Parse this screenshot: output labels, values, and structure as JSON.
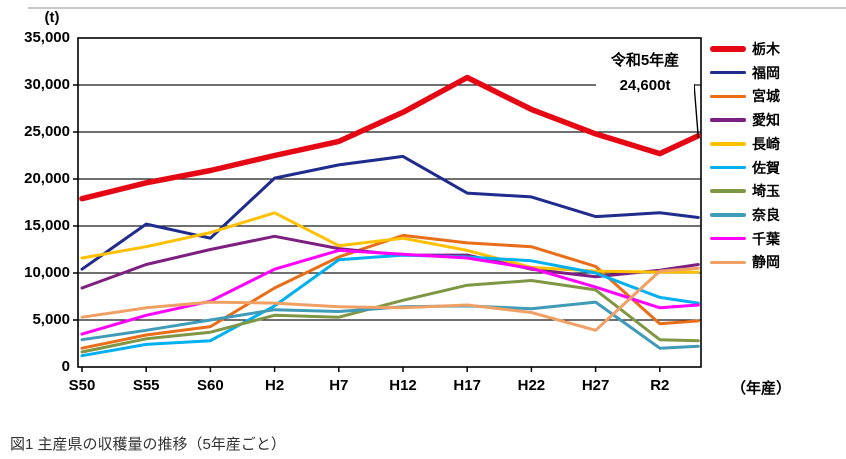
{
  "caption": "図1 主産県の収穫量の推移（5年産ごと）",
  "chart_data": {
    "type": "line",
    "unit": "(t)",
    "x_axis_unit": "（年産）",
    "title": "",
    "ylim": [
      0,
      35000
    ],
    "grid": "horizontal",
    "legend_position": "right",
    "y_tick_values": [
      35000,
      30000,
      25000,
      20000,
      15000,
      10000,
      5000,
      0
    ],
    "y_tick_labels": [
      "35,000",
      "30,000",
      "25,000",
      "20,000",
      "15,000",
      "10,000",
      "5,000",
      "0"
    ],
    "x_tick_labels": [
      "S50",
      "S55",
      "S60",
      "H2",
      "H7",
      "H12",
      "H17",
      "H22",
      "H27",
      "R2"
    ],
    "x_offsets_years": [
      0,
      5,
      10,
      15,
      20,
      25,
      30,
      35,
      40,
      45,
      48
    ],
    "annotation": {
      "line1": "令和5年産",
      "line2": "24,600t",
      "attached_series": "栃木",
      "attached_value": 24600
    },
    "series": [
      {
        "name": "栃木",
        "key": "tochigi",
        "color": "#e60714",
        "thick": true,
        "values": [
          17900,
          19600,
          20900,
          22500,
          24000,
          27100,
          30800,
          27400,
          24800,
          22700,
          24600
        ]
      },
      {
        "name": "福岡",
        "key": "fukuoka",
        "color": "#1f2b8d",
        "thick": false,
        "values": [
          10400,
          15200,
          13700,
          20100,
          21500,
          22400,
          18500,
          18100,
          16000,
          16400,
          15900
        ]
      },
      {
        "name": "宮城",
        "key": "miyagi",
        "color": "#ea6d18",
        "thick": false,
        "values": [
          2000,
          3400,
          4300,
          8400,
          11700,
          14000,
          13200,
          12800,
          10700,
          4600,
          4900
        ]
      },
      {
        "name": "愛知",
        "key": "aichi",
        "color": "#7d1f80",
        "thick": false,
        "values": [
          8400,
          10900,
          12500,
          13900,
          12600,
          11900,
          11900,
          10400,
          9600,
          10300,
          10900
        ]
      },
      {
        "name": "長崎",
        "key": "nagasaki",
        "color": "#ffc000",
        "thick": false,
        "values": [
          11600,
          12800,
          14300,
          16400,
          12900,
          13700,
          12400,
          10600,
          10200,
          10100,
          10100
        ]
      },
      {
        "name": "佐賀",
        "key": "saga",
        "color": "#00b0f0",
        "thick": false,
        "values": [
          1200,
          2400,
          2800,
          6500,
          11400,
          11900,
          11700,
          11300,
          10000,
          7400,
          6800
        ]
      },
      {
        "name": "埼玉",
        "key": "saitama",
        "color": "#7f9645",
        "thick": false,
        "values": [
          1600,
          3000,
          3700,
          5500,
          5300,
          7100,
          8700,
          9200,
          8200,
          2900,
          2800
        ]
      },
      {
        "name": "奈良",
        "key": "nara",
        "color": "#3f9bb8",
        "thick": false,
        "values": [
          2900,
          3900,
          5000,
          6100,
          5900,
          6400,
          6500,
          6200,
          6900,
          2000,
          2200
        ]
      },
      {
        "name": "千葉",
        "key": "chiba",
        "color": "#ff00ff",
        "thick": false,
        "values": [
          3500,
          5500,
          7000,
          10400,
          12400,
          12000,
          11600,
          10500,
          8500,
          6300,
          6600
        ]
      },
      {
        "name": "静岡",
        "key": "shizuoka",
        "color": "#f0a065",
        "thick": false,
        "values": [
          5300,
          6300,
          6900,
          6800,
          6400,
          6300,
          6600,
          5800,
          3900,
          10200,
          10500
        ]
      }
    ]
  }
}
